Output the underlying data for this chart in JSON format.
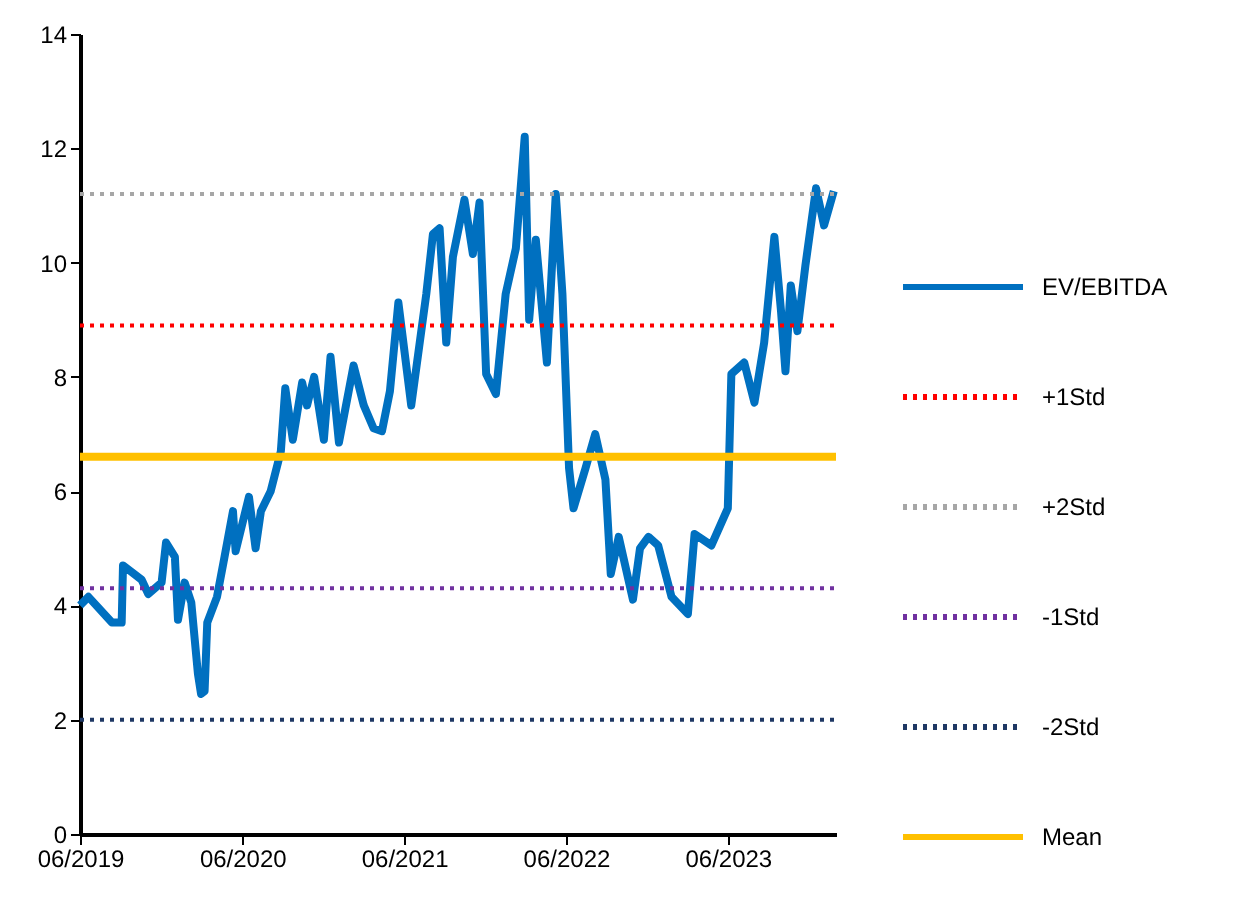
{
  "chart_data": {
    "type": "line",
    "xlim": [
      "2019-06-01",
      "2024-01-31"
    ],
    "xticks": [
      {
        "value": "2019-06-01",
        "label": "06/2019"
      },
      {
        "value": "2020-06-01",
        "label": "06/2020"
      },
      {
        "value": "2021-06-01",
        "label": "06/2021"
      },
      {
        "value": "2022-06-01",
        "label": "06/2022"
      },
      {
        "value": "2023-06-01",
        "label": "06/2023"
      }
    ],
    "ylim": [
      0,
      14
    ],
    "yticks": [
      0,
      2,
      4,
      6,
      8,
      10,
      12,
      14
    ],
    "grid": false,
    "legend": "right",
    "series": [
      {
        "name": "EV/EBITDA",
        "color": "#0070c0",
        "line_style": "solid",
        "x": [
          "2019-06-01",
          "2019-06-20",
          "2019-08-12",
          "2019-09-03",
          "2019-09-06",
          "2019-10-18",
          "2019-11-02",
          "2019-12-02",
          "2019-12-12",
          "2020-01-01",
          "2020-01-08",
          "2020-01-23",
          "2020-02-07",
          "2020-02-22",
          "2020-02-29",
          "2020-03-08",
          "2020-03-14",
          "2020-04-05",
          "2020-04-22",
          "2020-05-11",
          "2020-05-17",
          "2020-06-16",
          "2020-07-01",
          "2020-07-13",
          "2020-08-04",
          "2020-08-27",
          "2020-09-06",
          "2020-09-23",
          "2020-10-14",
          "2020-10-25",
          "2020-11-10",
          "2020-12-02",
          "2020-12-17",
          "2021-01-05",
          "2021-02-07",
          "2021-03-02",
          "2021-03-24",
          "2021-04-12",
          "2021-04-30",
          "2021-05-19",
          "2021-06-17",
          "2021-07-21",
          "2021-08-05",
          "2021-08-20",
          "2021-09-04",
          "2021-09-19",
          "2021-10-15",
          "2021-11-03",
          "2021-11-18",
          "2021-12-03",
          "2021-12-25",
          "2022-01-16",
          "2022-02-08",
          "2022-02-28",
          "2022-03-10",
          "2022-03-25",
          "2022-04-19",
          "2022-05-09",
          "2022-05-24",
          "2022-06-08",
          "2022-06-18",
          "2022-07-15",
          "2022-08-06",
          "2022-08-29",
          "2022-09-10",
          "2022-09-28",
          "2022-10-30",
          "2022-11-15",
          "2022-12-04",
          "2022-12-26",
          "2023-01-25",
          "2023-03-03",
          "2023-03-18",
          "2023-04-25",
          "2023-06-01",
          "2023-06-09",
          "2023-07-08",
          "2023-07-31",
          "2023-08-22",
          "2023-09-14",
          "2023-09-29",
          "2023-10-09",
          "2023-10-21",
          "2023-11-05",
          "2023-11-23",
          "2023-12-17",
          "2024-01-04",
          "2024-01-26"
        ],
        "values": [
          4.0,
          4.15,
          3.7,
          3.7,
          4.7,
          4.45,
          4.2,
          4.4,
          5.1,
          4.85,
          3.75,
          4.4,
          4.05,
          2.8,
          2.45,
          2.5,
          3.7,
          4.15,
          4.85,
          5.65,
          4.95,
          5.9,
          5.0,
          5.65,
          6.0,
          6.7,
          7.8,
          6.9,
          7.9,
          7.5,
          8.0,
          6.9,
          8.35,
          6.85,
          8.2,
          7.5,
          7.1,
          7.05,
          7.75,
          9.3,
          7.5,
          9.45,
          10.5,
          10.6,
          8.6,
          10.1,
          11.1,
          10.15,
          11.05,
          8.05,
          7.7,
          9.45,
          10.25,
          12.2,
          9.0,
          10.4,
          8.25,
          11.2,
          9.45,
          6.4,
          5.7,
          6.4,
          7.0,
          6.2,
          4.55,
          5.2,
          4.1,
          5.0,
          5.2,
          5.05,
          4.15,
          3.85,
          5.25,
          5.05,
          5.7,
          8.05,
          8.25,
          7.55,
          8.6,
          10.45,
          9.15,
          8.1,
          9.6,
          8.8,
          9.95,
          11.3,
          10.65,
          11.25
        ]
      },
      {
        "name": "+1Std",
        "color": "#ff0000",
        "line_style": "dotted",
        "x": [
          "2019-06-01",
          "2024-01-31"
        ],
        "values": [
          8.9,
          8.9
        ]
      },
      {
        "name": "+2Std",
        "color": "#a6a6a6",
        "line_style": "dotted",
        "x": [
          "2019-06-01",
          "2024-01-31"
        ],
        "values": [
          11.2,
          11.2
        ]
      },
      {
        "name": "-1Std",
        "color": "#7030a0",
        "line_style": "dotted",
        "x": [
          "2019-06-01",
          "2024-01-31"
        ],
        "values": [
          4.3,
          4.3
        ]
      },
      {
        "name": "-2Std",
        "color": "#1f3864",
        "line_style": "dotted",
        "x": [
          "2019-06-01",
          "2024-01-31"
        ],
        "values": [
          2.0,
          2.0
        ]
      },
      {
        "name": "Mean",
        "color": "#ffc000",
        "line_style": "solid",
        "x": [
          "2019-06-01",
          "2024-01-31"
        ],
        "values": [
          6.6,
          6.6
        ]
      }
    ]
  }
}
